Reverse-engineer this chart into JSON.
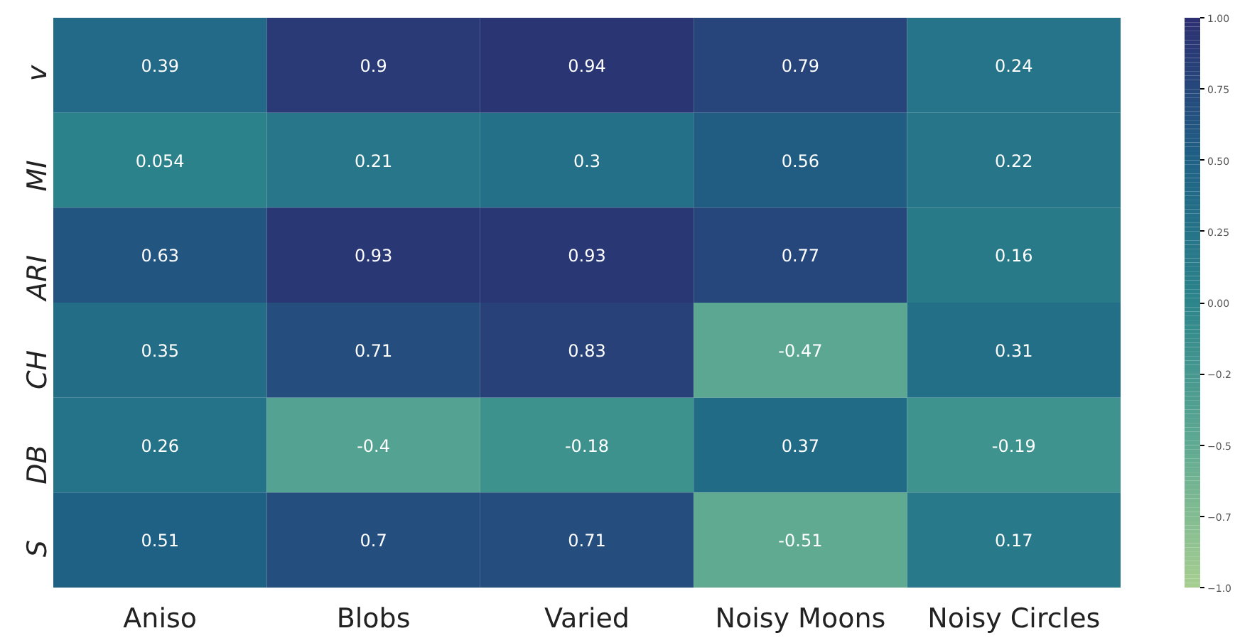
{
  "chart_data": {
    "type": "heatmap",
    "categories": [
      "Aniso",
      "Blobs",
      "Varied",
      "Noisy Moons",
      "Noisy Circles"
    ],
    "y_categories": [
      "v",
      "MI",
      "ARI",
      "CH",
      "DB",
      "S"
    ],
    "cells": [
      [
        0.39,
        0.9,
        0.94,
        0.79,
        0.24
      ],
      [
        0.054,
        0.21,
        0.3,
        0.56,
        0.22
      ],
      [
        0.63,
        0.93,
        0.93,
        0.77,
        0.16
      ],
      [
        0.35,
        0.71,
        0.83,
        -0.47,
        0.31
      ],
      [
        0.26,
        -0.4,
        -0.18,
        0.37,
        -0.19
      ],
      [
        0.51,
        0.7,
        0.71,
        -0.51,
        0.17
      ]
    ],
    "data_labels": true,
    "clim": [
      -1.0,
      1.0
    ],
    "cticks": [
      {
        "value": 1.0,
        "label": "1.00"
      },
      {
        "value": 0.75,
        "label": "0.75"
      },
      {
        "value": 0.5,
        "label": "0.50"
      },
      {
        "value": 0.25,
        "label": "0.25"
      },
      {
        "value": 0.0,
        "label": "0.00"
      },
      {
        "value": -0.25,
        "label": "−0.2"
      },
      {
        "value": -0.5,
        "label": "−0.5"
      },
      {
        "value": -0.75,
        "label": "−0.7"
      },
      {
        "value": -1.0,
        "label": "−1.0"
      }
    ]
  }
}
